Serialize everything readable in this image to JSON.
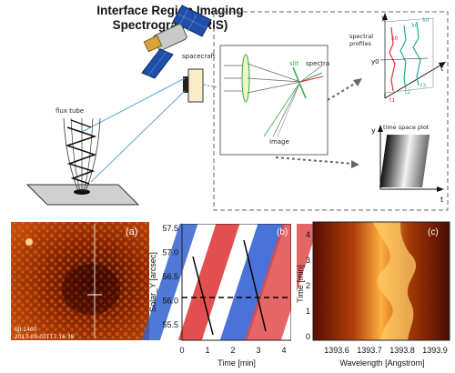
{
  "title_line1": "Interface Region Imaging",
  "title_line2": "Spectrograph (IRIS)",
  "labels": {
    "spacecraft": "spacecraft",
    "flux_tube": "flux tube",
    "slit": "slit",
    "spectra": "spectra",
    "image": "image",
    "spectral_profiles": "spectral profiles",
    "time_space_plot": "time space plot",
    "axis_y": "y",
    "axis_t": "t",
    "axis_x": "x",
    "y0": "y0",
    "lambda0": "λ0",
    "t1": "t1",
    "t2": "t2",
    "t3": "t3"
  },
  "panel_a": {
    "label": "(a)",
    "caption1": "SJI 1400",
    "caption2": "2013-09-02T17:16:39"
  },
  "panel_b": {
    "label": "(b)",
    "ylabel": "Solar_Y [arcsec]",
    "xlabel": "Time [min]",
    "yticks": [
      "57.5",
      "57.0",
      "56.5",
      "56.0",
      "55.5"
    ],
    "xticks": [
      "0",
      "1",
      "2",
      "3",
      "4"
    ]
  },
  "panel_c": {
    "label": "(c)",
    "ylabel": "Time [min]",
    "xlabel": "Wavelength [Angstrom]",
    "yticks": [
      "4",
      "3",
      "2",
      "1",
      "0"
    ],
    "xticks": [
      "1393.6",
      "1393.7",
      "1393.8",
      "1393.9"
    ]
  },
  "colors": {
    "title": "#111111",
    "dashed_box": "#666666",
    "blue_lines": "#5aa6d6",
    "green_optics": "#3aa84a",
    "red_profile": "#e03040",
    "teal_profile": "#2aa89a"
  }
}
